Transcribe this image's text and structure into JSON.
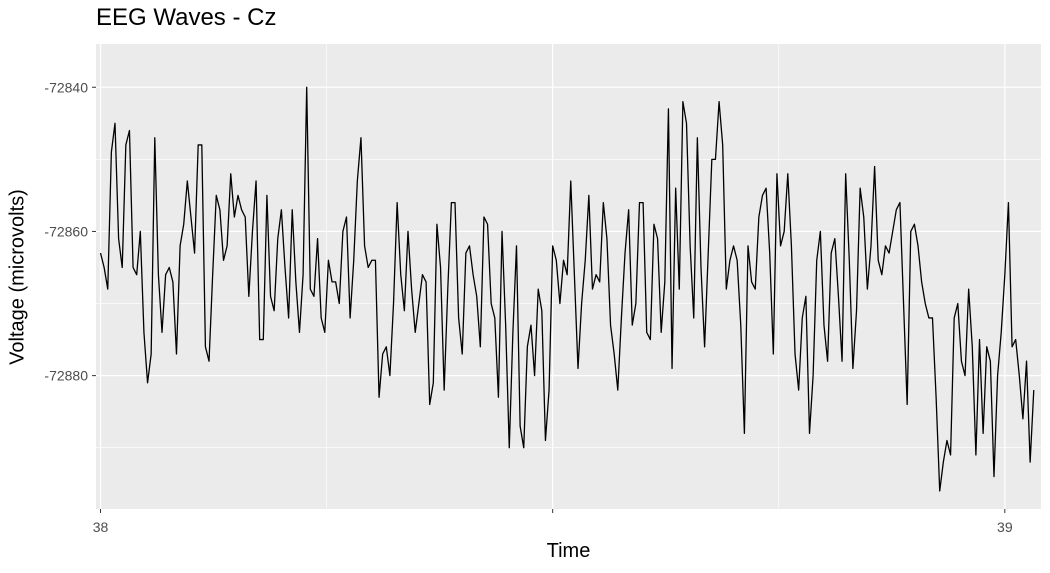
{
  "chart_data": {
    "type": "line",
    "title": "EEG Waves - Cz",
    "xlabel": "Time",
    "ylabel": "Voltage (microvolts)",
    "xlim": [
      37.995,
      39.04
    ],
    "ylim": [
      -72898.5,
      -72834
    ],
    "x_ticks": [
      38,
      38.5,
      39
    ],
    "x_tick_labels": [
      "38",
      "",
      "39"
    ],
    "y_ticks": [
      -72840,
      -72860,
      -72880
    ],
    "y_tick_labels": [
      "-72840",
      "-72860",
      "-72880"
    ],
    "grid": true,
    "panel_background": "#EBEBEB",
    "line_color": "#000000",
    "series": [
      {
        "x_start": 38.0,
        "x_step": 0.004,
        "values": [
          -72863,
          -72865,
          -72868,
          -72849,
          -72845,
          -72861,
          -72865,
          -72848,
          -72846,
          -72865,
          -72866,
          -72860,
          -72874,
          -72881,
          -72877,
          -72847,
          -72866,
          -72874,
          -72866,
          -72865,
          -72867,
          -72877,
          -72862,
          -72859,
          -72853,
          -72858,
          -72863,
          -72848,
          -72848,
          -72876,
          -72878,
          -72866,
          -72855,
          -72857,
          -72864,
          -72862,
          -72852,
          -72858,
          -72855,
          -72857,
          -72858,
          -72869,
          -72860,
          -72853,
          -72875,
          -72875,
          -72855,
          -72869,
          -72871,
          -72861,
          -72857,
          -72865,
          -72872,
          -72857,
          -72867,
          -72874,
          -72866,
          -72840,
          -72868,
          -72869,
          -72861,
          -72872,
          -72874,
          -72864,
          -72867,
          -72867,
          -72870,
          -72860,
          -72858,
          -72872,
          -72864,
          -72853,
          -72847,
          -72862,
          -72865,
          -72864,
          -72864,
          -72883,
          -72877,
          -72876,
          -72880,
          -72870,
          -72856,
          -72866,
          -72871,
          -72860,
          -72868,
          -72874,
          -72870,
          -72866,
          -72867,
          -72884,
          -72881,
          -72859,
          -72865,
          -72882,
          -72868,
          -72856,
          -72856,
          -72872,
          -72877,
          -72863,
          -72862,
          -72866,
          -72869,
          -72876,
          -72858,
          -72859,
          -72870,
          -72872,
          -72883,
          -72860,
          -72873,
          -72890,
          -72874,
          -72862,
          -72887,
          -72890,
          -72876,
          -72873,
          -72880,
          -72868,
          -72871,
          -72889,
          -72882,
          -72862,
          -72864,
          -72870,
          -72864,
          -72866,
          -72853,
          -72866,
          -72879,
          -72870,
          -72864,
          -72855,
          -72868,
          -72866,
          -72867,
          -72856,
          -72861,
          -72873,
          -72877,
          -72882,
          -72872,
          -72863,
          -72857,
          -72873,
          -72870,
          -72856,
          -72856,
          -72874,
          -72875,
          -72859,
          -72861,
          -72874,
          -72867,
          -72843,
          -72879,
          -72854,
          -72868,
          -72842,
          -72845,
          -72862,
          -72872,
          -72847,
          -72865,
          -72876,
          -72863,
          -72850,
          -72850,
          -72842,
          -72848,
          -72868,
          -72864,
          -72862,
          -72864,
          -72873,
          -72888,
          -72862,
          -72867,
          -72868,
          -72858,
          -72855,
          -72854,
          -72863,
          -72877,
          -72852,
          -72862,
          -72860,
          -72852,
          -72862,
          -72877,
          -72882,
          -72872,
          -72869,
          -72888,
          -72880,
          -72864,
          -72860,
          -72873,
          -72878,
          -72863,
          -72861,
          -72869,
          -72878,
          -72852,
          -72864,
          -72879,
          -72871,
          -72854,
          -72858,
          -72868,
          -72862,
          -72851,
          -72864,
          -72866,
          -72862,
          -72863,
          -72860,
          -72857,
          -72856,
          -72870,
          -72884,
          -72860,
          -72859,
          -72862,
          -72867,
          -72870,
          -72872,
          -72872,
          -72883,
          -72896,
          -72892,
          -72889,
          -72891,
          -72872,
          -72870,
          -72878,
          -72880,
          -72868,
          -72876,
          -72891,
          -72875,
          -72888,
          -72876,
          -72878,
          -72894,
          -72880,
          -72874,
          -72866,
          -72856,
          -72876,
          -72875,
          -72880,
          -72886,
          -72878,
          -72892,
          -72882
        ]
      }
    ]
  }
}
